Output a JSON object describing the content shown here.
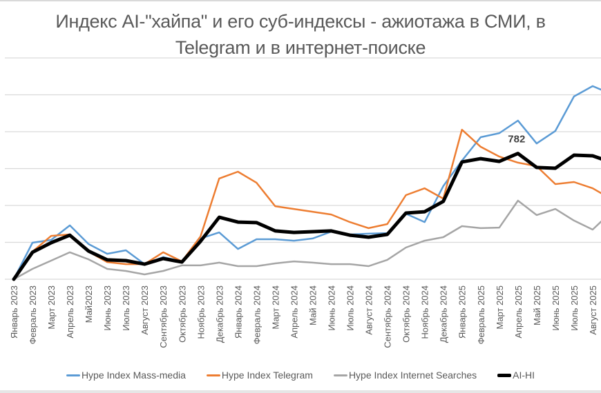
{
  "title_lines": [
    "Индекс AI-\"хайпа\" и его суб-индексы - ажиотажа в СМИ, в",
    "Telegram и в интернет-поиске"
  ],
  "colors": {
    "mass_media": "#5B9BD5",
    "telegram": "#ED7D31",
    "searches": "#A5A5A5",
    "ai_hi": "#000000",
    "grid": "#D9D9D9",
    "axis_text": "#595959"
  },
  "legend": [
    {
      "label": "Hype Index Mass-media",
      "color": "#5B9BD5",
      "thick": false
    },
    {
      "label": "Hype Index Telegram",
      "color": "#ED7D31",
      "thick": false
    },
    {
      "label": "Hype Index Internet Searches",
      "color": "#A5A5A5",
      "thick": false
    },
    {
      "label": "AI-HI",
      "color": "#000000",
      "thick": true
    }
  ],
  "chart_data": {
    "type": "line",
    "title": "Индекс AI-\"хайпа\" и его суб-индексы - ажиотажа в СМИ, в Telegram и в интернет-поиске",
    "xlabel": "",
    "ylabel": "",
    "ylim": [
      100,
      1300
    ],
    "y_gridlines": [
      100,
      300,
      500,
      700,
      900,
      1100,
      1300
    ],
    "y_tick_labels_visible": false,
    "grid": true,
    "legend_position": "bottom",
    "categories": [
      "Январь 2023",
      "Февраль 2023",
      "Март 2023",
      "Апрель 2023",
      "Май2023",
      "Июнь 2023",
      "Июль 2023",
      "Август 2023",
      "Сентябрь 2023",
      "Октябрь 2023",
      "Ноябрь 2023",
      "Декабрь 2023",
      "Январь 2024",
      "Февраль 2024",
      "Март 2024",
      "Апрель 2024",
      "Май 2024",
      "Июнь 2024",
      "Июль 2024",
      "Август 2024",
      "Сентябрь 2024",
      "Октябрь 2024",
      "Ноябрь 2024",
      "Декабрь 2024",
      "Январь 2025",
      "Февраль 2025",
      "Март 2025",
      "Апрель 2025",
      "Май 2025",
      "Июнь 2025",
      "Июль 2025",
      "Август 2025"
    ],
    "series": [
      {
        "name": "Hype Index Mass-media",
        "color": "#5B9BD5",
        "width": 2.5,
        "values": [
          100,
          298,
          313,
          392,
          291,
          238,
          257,
          182,
          220,
          197,
          321,
          354,
          264,
          317,
          317,
          309,
          321,
          358,
          343,
          347,
          350,
          455,
          410,
          605,
          743,
          870,
          892,
          960,
          836,
          904,
          1091,
          1147
        ],
        "tail_value": 1120
      },
      {
        "name": "Hype Index Telegram",
        "color": "#ED7D31",
        "width": 2.5,
        "values": [
          100,
          250,
          335,
          343,
          250,
          193,
          182,
          182,
          246,
          197,
          332,
          646,
          683,
          623,
          496,
          481,
          466,
          451,
          410,
          377,
          399,
          556,
          593,
          537,
          911,
          818,
          765,
          732,
          713,
          616,
          627,
          593
        ],
        "tail_value": 556
      },
      {
        "name": "Hype Index Internet Searches",
        "color": "#A5A5A5",
        "width": 2.5,
        "values": [
          100,
          156,
          201,
          246,
          208,
          156,
          145,
          126,
          145,
          175,
          175,
          190,
          171,
          171,
          186,
          197,
          190,
          182,
          182,
          171,
          205,
          272,
          309,
          328,
          388,
          377,
          380,
          526,
          448,
          481,
          418,
          369
        ],
        "tail_value": 430
      },
      {
        "name": "AI-HI",
        "color": "#000000",
        "width": 5,
        "values": [
          100,
          246,
          298,
          339,
          253,
          205,
          201,
          182,
          212,
          193,
          306,
          436,
          410,
          407,
          362,
          354,
          358,
          362,
          339,
          328,
          343,
          459,
          466,
          522,
          736,
          754,
          739,
          782,
          706,
          702,
          773,
          769
        ],
        "tail_value": 747
      }
    ],
    "annotations": [
      {
        "text": "782",
        "series": "AI-HI",
        "category": "Апрель 2025",
        "value": 782
      }
    ]
  }
}
